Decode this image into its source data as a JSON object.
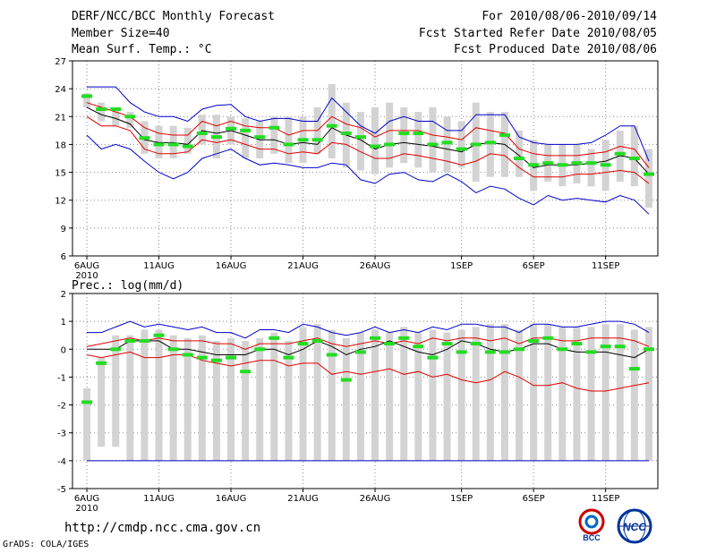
{
  "header": {
    "title": "DERF/NCC/BCC Monthly Forecast",
    "member": "Member Size=40",
    "variable": "Mean Surf. Temp.: °C",
    "period": "For 2010/08/06-2010/09/14",
    "started": "Fcst Started Refer Date 2010/08/05",
    "produced": "Fcst Produced Date 2010/08/06"
  },
  "footer": {
    "url": "http://cmdp.ncc.cma.gov.cn",
    "grads": "GrADS: COLA/IGES",
    "logo_left_text": "BCC",
    "logo_right_text": "NCC"
  },
  "colors": {
    "box": "#d3d3d3",
    "median": "#22dd22",
    "mean": "#000000",
    "pct": "#e00000",
    "ext": "#0000cc",
    "grid": "#888888"
  },
  "chart_data": [
    {
      "type": "box-plume",
      "title": "Mean Surf. Temp.: °C",
      "ylim": [
        6,
        27
      ],
      "yticks": [
        6,
        9,
        12,
        15,
        18,
        21,
        24,
        27
      ],
      "xtick_labels": [
        "6AUG",
        "11AUG",
        "16AUG",
        "21AUG",
        "26AUG",
        "1SEP",
        "6SEP",
        "11SEP"
      ],
      "xtick_days": [
        1,
        6,
        11,
        16,
        21,
        27,
        32,
        37
      ],
      "year_label": "2010",
      "days": 40,
      "series": {
        "max": [
          24.2,
          24.2,
          24.2,
          22.5,
          21.5,
          21.0,
          21.0,
          20.5,
          21.8,
          22.2,
          22.3,
          21.0,
          20.5,
          20.8,
          20.8,
          20.5,
          20.5,
          23.0,
          21.5,
          20.0,
          19.2,
          20.5,
          21.0,
          20.5,
          20.5,
          19.5,
          19.5,
          21.2,
          21.2,
          21.2,
          18.8,
          18.2,
          18.0,
          18.0,
          18.0,
          18.2,
          19.0,
          20.0,
          20.0,
          16.2
        ],
        "p90": [
          22.5,
          22.0,
          21.5,
          21.0,
          19.8,
          19.2,
          19.0,
          19.0,
          20.5,
          20.0,
          20.5,
          20.0,
          19.8,
          19.8,
          19.0,
          19.5,
          19.5,
          21.0,
          20.2,
          19.8,
          18.8,
          19.5,
          19.5,
          19.5,
          19.0,
          18.8,
          18.5,
          19.8,
          19.5,
          19.2,
          17.5,
          17.0,
          16.8,
          16.8,
          16.8,
          17.0,
          17.2,
          17.8,
          17.5,
          15.5
        ],
        "mean": [
          22.0,
          21.2,
          20.8,
          20.2,
          18.5,
          18.2,
          18.2,
          18.0,
          19.5,
          19.2,
          19.5,
          19.0,
          18.5,
          18.5,
          18.0,
          18.2,
          18.0,
          19.8,
          19.0,
          18.5,
          17.5,
          18.0,
          18.2,
          18.0,
          17.8,
          17.5,
          17.2,
          18.0,
          18.2,
          18.0,
          16.8,
          15.5,
          15.8,
          15.8,
          15.8,
          16.0,
          16.2,
          16.8,
          16.5,
          14.8
        ],
        "p10": [
          21.0,
          20.0,
          20.0,
          19.5,
          17.5,
          17.0,
          17.0,
          17.2,
          18.5,
          18.2,
          18.5,
          18.0,
          17.5,
          17.5,
          17.0,
          17.2,
          17.0,
          18.2,
          18.0,
          17.2,
          16.5,
          16.5,
          17.0,
          16.8,
          16.5,
          16.2,
          15.8,
          16.2,
          17.0,
          16.8,
          15.5,
          14.5,
          14.5,
          14.5,
          14.8,
          14.8,
          15.0,
          15.2,
          15.0,
          13.8
        ],
        "min": [
          19.0,
          17.5,
          18.0,
          17.5,
          16.2,
          15.0,
          14.3,
          15.0,
          16.5,
          17.0,
          17.5,
          16.5,
          15.8,
          16.0,
          15.8,
          15.5,
          15.5,
          16.0,
          15.8,
          14.2,
          13.8,
          14.8,
          15.0,
          14.2,
          14.0,
          14.8,
          14.0,
          12.8,
          13.5,
          13.2,
          12.2,
          11.5,
          12.5,
          12.0,
          12.2,
          12.0,
          11.8,
          12.5,
          12.0,
          10.5
        ],
        "median": [
          23.2,
          21.8,
          21.8,
          21.0,
          18.7,
          18.0,
          18.0,
          17.8,
          19.2,
          18.8,
          19.7,
          19.5,
          18.8,
          19.8,
          18.0,
          18.5,
          18.5,
          20.0,
          19.2,
          18.8,
          17.8,
          18.0,
          19.2,
          19.2,
          18.0,
          18.2,
          17.5,
          18.0,
          18.2,
          19.0,
          16.5,
          15.8,
          16.0,
          15.8,
          16.0,
          16.0,
          15.8,
          17.0,
          16.5,
          14.8
        ],
        "box_hi": [
          23.5,
          22.5,
          22.0,
          21.5,
          20.5,
          20.0,
          20.0,
          19.8,
          21.2,
          21.2,
          21.0,
          20.8,
          20.5,
          21.0,
          21.0,
          21.0,
          22.0,
          24.5,
          22.5,
          21.5,
          22.0,
          22.5,
          22.0,
          21.5,
          22.0,
          21.0,
          20.5,
          22.5,
          21.5,
          21.5,
          19.5,
          18.5,
          18.0,
          18.0,
          18.0,
          17.5,
          18.5,
          19.5,
          20.0,
          17.5
        ],
        "box_lo": [
          22.0,
          20.5,
          20.0,
          19.8,
          17.0,
          16.5,
          16.5,
          17.0,
          18.0,
          16.5,
          18.0,
          16.5,
          16.5,
          17.0,
          16.0,
          16.0,
          17.0,
          16.5,
          15.5,
          15.2,
          14.8,
          15.5,
          16.0,
          15.5,
          15.0,
          15.0,
          15.5,
          14.0,
          14.5,
          14.5,
          14.5,
          13.0,
          14.0,
          13.5,
          13.8,
          13.5,
          13.0,
          14.0,
          13.5,
          11.2
        ]
      }
    },
    {
      "type": "box-plume",
      "title": "Prec.: log(mm/d)",
      "ylim": [
        -5,
        2
      ],
      "yticks": [
        -5,
        -4,
        -3,
        -2,
        -1,
        0,
        1,
        2
      ],
      "xtick_labels": [
        "6AUG",
        "11AUG",
        "16AUG",
        "21AUG",
        "26AUG",
        "1SEP",
        "6SEP",
        "11SEP"
      ],
      "xtick_days": [
        1,
        6,
        11,
        16,
        21,
        27,
        32,
        37
      ],
      "year_label": "2010",
      "days": 40,
      "series": {
        "max": [
          0.6,
          0.6,
          0.8,
          1.0,
          0.8,
          0.9,
          0.8,
          0.7,
          0.8,
          0.6,
          0.6,
          0.4,
          0.7,
          0.7,
          0.6,
          0.9,
          0.8,
          0.6,
          0.5,
          0.6,
          0.8,
          0.6,
          0.7,
          0.6,
          0.8,
          0.7,
          0.9,
          0.9,
          0.8,
          0.8,
          0.6,
          0.9,
          0.9,
          0.8,
          0.8,
          0.9,
          1.0,
          1.0,
          0.9,
          0.6
        ],
        "p90": [
          0.1,
          0.2,
          0.3,
          0.4,
          0.3,
          0.4,
          0.3,
          0.3,
          0.3,
          0.2,
          0.2,
          0.0,
          0.2,
          0.2,
          0.2,
          0.3,
          0.4,
          0.2,
          0.1,
          0.2,
          0.3,
          0.2,
          0.3,
          0.2,
          0.4,
          0.3,
          0.4,
          0.4,
          0.3,
          0.4,
          0.2,
          0.4,
          0.4,
          0.3,
          0.3,
          0.4,
          0.4,
          0.4,
          0.3,
          0.1
        ],
        "mean": [
          0.0,
          0.0,
          0.0,
          0.3,
          0.3,
          0.3,
          0.0,
          0.0,
          -0.1,
          -0.2,
          -0.2,
          -0.2,
          0.0,
          0.0,
          -0.2,
          0.0,
          0.3,
          0.1,
          -0.2,
          0.0,
          0.1,
          0.3,
          0.1,
          -0.1,
          -0.2,
          0.0,
          0.3,
          0.2,
          0.0,
          -0.1,
          0.0,
          0.2,
          0.2,
          0.0,
          -0.1,
          -0.1,
          -0.1,
          -0.2,
          -0.3,
          0.0
        ],
        "p10": [
          -0.2,
          -0.3,
          -0.2,
          -0.1,
          -0.3,
          -0.3,
          -0.2,
          -0.2,
          -0.4,
          -0.5,
          -0.6,
          -0.5,
          -0.4,
          -0.4,
          -0.6,
          -0.5,
          -0.5,
          -0.9,
          -0.8,
          -0.9,
          -0.8,
          -0.7,
          -0.9,
          -0.8,
          -1.0,
          -0.9,
          -1.1,
          -1.2,
          -1.1,
          -0.8,
          -1.0,
          -1.3,
          -1.3,
          -1.2,
          -1.4,
          -1.5,
          -1.5,
          -1.4,
          -1.3,
          -1.2
        ],
        "min": [
          -4,
          -4,
          -4,
          -4,
          -4,
          -4,
          -4,
          -4,
          -4,
          -4,
          -4,
          -4,
          -4,
          -4,
          -4,
          -4,
          -4,
          -4,
          -4,
          -4,
          -4,
          -4,
          -4,
          -4,
          -4,
          -4,
          -4,
          -4,
          -4,
          -4,
          -4,
          -4,
          -4,
          -4,
          -4,
          -4,
          -4,
          -4,
          -4,
          -4
        ],
        "median": [
          -1.9,
          -0.5,
          0.0,
          0.3,
          0.3,
          0.5,
          0.0,
          -0.2,
          -0.3,
          -0.4,
          -0.3,
          -0.8,
          0.0,
          0.4,
          -0.3,
          0.2,
          0.3,
          -0.2,
          -1.1,
          -0.1,
          0.4,
          0.2,
          0.4,
          0.1,
          -0.3,
          0.2,
          -0.1,
          0.2,
          -0.1,
          -0.1,
          0.0,
          0.3,
          0.4,
          0.0,
          0.2,
          -0.1,
          0.1,
          0.1,
          -0.7,
          0.0
        ],
        "box_hi": [
          -1.4,
          -0.3,
          0.5,
          0.5,
          0.7,
          0.7,
          0.5,
          0.4,
          0.5,
          0.3,
          0.4,
          0.3,
          0.4,
          0.6,
          0.3,
          0.8,
          0.9,
          0.7,
          0.4,
          0.6,
          0.7,
          0.6,
          0.8,
          0.6,
          0.7,
          0.6,
          0.7,
          0.8,
          0.9,
          0.9,
          0.7,
          0.9,
          0.9,
          0.8,
          0.8,
          0.8,
          0.9,
          0.9,
          0.7,
          0.8
        ],
        "box_lo": [
          -4.0,
          -3.5,
          -3.5,
          -4.0,
          -4.0,
          -4.0,
          -4.0,
          -4.0,
          -4.0,
          -4.0,
          -4.0,
          -4.0,
          -4.0,
          -4.0,
          -4.0,
          -4.0,
          -4.0,
          -4.0,
          -4.0,
          -4.0,
          -4.0,
          -4.0,
          -4.0,
          -4.0,
          -4.0,
          -4.0,
          -4.0,
          -4.0,
          -4.0,
          -4.0,
          -4.0,
          -4.0,
          -4.0,
          -4.0,
          -4.0,
          -4.0,
          -4.0,
          -4.0,
          -4.0,
          -4.0
        ]
      }
    }
  ]
}
